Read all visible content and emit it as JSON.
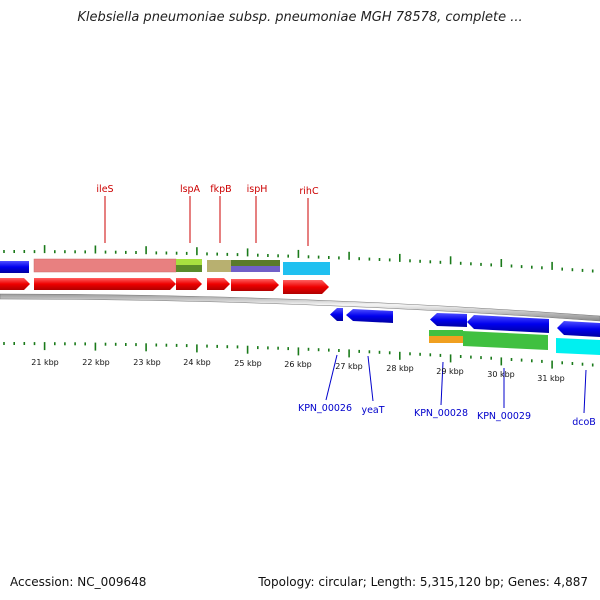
{
  "title": "Klebsiella pneumoniae subsp. pneumoniae MGH 78578, complete ...",
  "footer": {
    "accession": "Accession: NC_009648",
    "summary": "Topology: circular; Length: 5,315,120 bp; Genes: 4,887"
  },
  "colors": {
    "tick": "#1a7a1a",
    "label_top": "#cc0000",
    "label_bottom": "#0000cc",
    "backbone": "#b8b8b8"
  },
  "scale_labels": [
    "21 kbp",
    "22 kbp",
    "23 kbp",
    "24 kbp",
    "25 kbp",
    "26 kbp",
    "27 kbp",
    "28 kbp",
    "29 kbp",
    "30 kbp",
    "31 kbp"
  ],
  "top_labels": [
    "ileS",
    "lspA",
    "fkpB",
    "ispH",
    "rihC"
  ],
  "bottom_labels": [
    "KPN_00026",
    "yeaT",
    "KPN_00028",
    "KPN_00029",
    "dcoB"
  ]
}
